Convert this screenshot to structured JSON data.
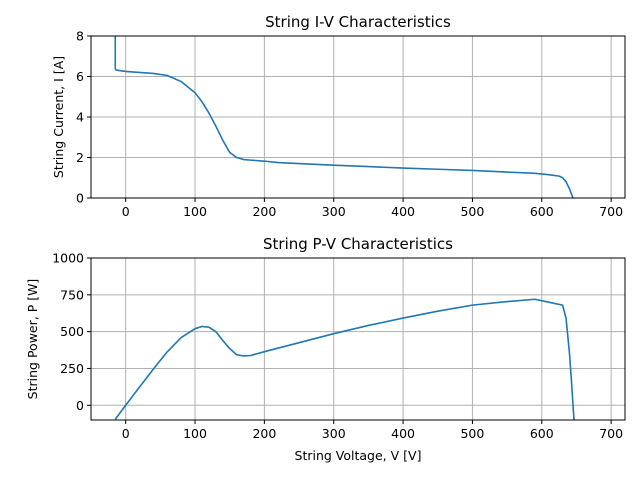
{
  "colors": {
    "line": "#1f77b4",
    "grid": "#b0b0b0",
    "axes": "#000000",
    "background": "#ffffff"
  },
  "chart_data": [
    {
      "type": "line",
      "title": "String I-V Characteristics",
      "xlabel": "",
      "ylabel": "String Current, I [A]",
      "xlim": [
        -50,
        720
      ],
      "ylim": [
        0,
        8
      ],
      "xticks": [
        0,
        100,
        200,
        300,
        400,
        500,
        600,
        700
      ],
      "yticks": [
        0,
        2,
        4,
        6,
        8
      ],
      "grid": true,
      "series": [
        {
          "x": [
            -15,
            -15,
            -14,
            -10,
            0,
            20,
            40,
            60,
            80,
            100,
            110,
            120,
            130,
            140,
            150,
            160,
            170,
            180,
            200,
            220,
            250,
            300,
            350,
            400,
            450,
            500,
            550,
            590,
            610,
            625,
            630,
            635,
            640,
            645,
            650
          ],
          "y": [
            8.6,
            6.4,
            6.32,
            6.3,
            6.25,
            6.2,
            6.15,
            6.05,
            5.75,
            5.2,
            4.75,
            4.2,
            3.55,
            2.85,
            2.25,
            2.0,
            1.9,
            1.87,
            1.82,
            1.75,
            1.7,
            1.62,
            1.55,
            1.48,
            1.42,
            1.36,
            1.28,
            1.22,
            1.15,
            1.08,
            1.0,
            0.8,
            0.45,
            0.0,
            -0.6
          ]
        }
      ]
    },
    {
      "type": "line",
      "title": "String P-V Characteristics",
      "xlabel": "String Voltage, V [V]",
      "ylabel": "String Power, P [W]",
      "xlim": [
        -50,
        720
      ],
      "ylim": [
        -100,
        1000
      ],
      "xticks": [
        0,
        100,
        200,
        300,
        400,
        500,
        600,
        700
      ],
      "yticks": [
        0,
        250,
        500,
        750,
        1000
      ],
      "grid": true,
      "series": [
        {
          "x": [
            -15,
            0,
            20,
            40,
            60,
            80,
            100,
            110,
            120,
            130,
            140,
            150,
            160,
            170,
            180,
            200,
            250,
            300,
            350,
            400,
            450,
            500,
            550,
            590,
            610,
            630,
            635,
            640,
            643,
            645,
            647
          ],
          "y": [
            -95,
            0,
            124,
            246,
            363,
            460,
            520,
            535,
            530,
            500,
            440,
            385,
            343,
            335,
            338,
            364,
            425,
            486,
            542,
            592,
            639,
            680,
            704,
            720,
            700,
            680,
            590,
            350,
            150,
            0,
            -130
          ]
        }
      ]
    }
  ]
}
